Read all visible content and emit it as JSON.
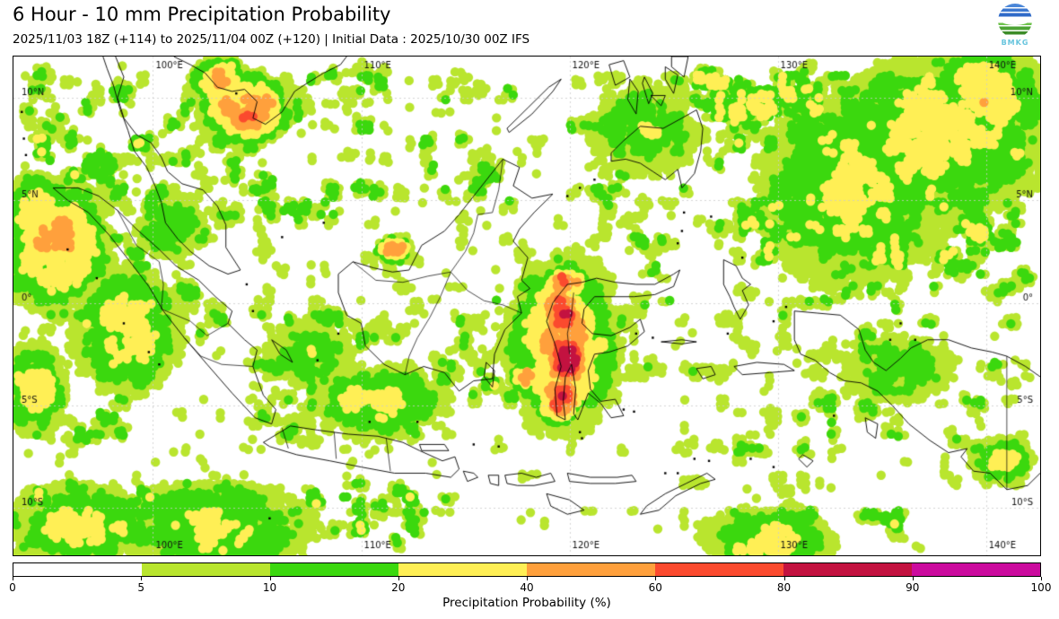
{
  "header": {
    "title": "6 Hour - 10 mm Precipitation Probability",
    "subtitle": "2025/11/03 18Z (+114) to 2025/11/04 00Z (+120) | Initial Data : 2025/10/30 00Z IFS",
    "logo": {
      "text": "BMKG"
    }
  },
  "map": {
    "extent": {
      "lon_min": 93.3,
      "lon_max": 142.6,
      "lat_min": -12.3,
      "lat_max": 12.0
    },
    "grid": {
      "lon_ticks": [
        100,
        110,
        120,
        130,
        140
      ],
      "lon_labels": [
        "100°E",
        "110°E",
        "120°E",
        "130°E",
        "140°E"
      ],
      "lat_ticks": [
        10,
        5,
        0,
        -5,
        -10
      ],
      "lat_labels": [
        "10°N",
        "5°N",
        "0°",
        "5°S",
        "10°S"
      ],
      "line_color": "#cccccc",
      "label_color": "#111111"
    },
    "coast_color": "#000000",
    "coastlines": [
      [
        95.2,
        5.6,
        95.9,
        5.0,
        96.9,
        4.4,
        97.9,
        3.3,
        98.9,
        2.0,
        99.8,
        0.8,
        100.5,
        -0.4,
        101.5,
        -1.7,
        102.6,
        -3.0,
        103.8,
        -4.4,
        104.9,
        -5.6,
        105.7,
        -5.9,
        105.9,
        -5.2,
        105.3,
        -4.5,
        104.8,
        -3.1,
        105.0,
        -2.3,
        104.4,
        -1.8,
        103.6,
        -1.0,
        103.8,
        -0.4,
        103.0,
        0.3,
        102.2,
        1.1,
        101.1,
        1.8,
        100.3,
        2.6,
        99.2,
        3.6,
        98.3,
        4.5,
        97.4,
        5.2,
        96.4,
        5.6,
        95.2,
        5.6
      ],
      [
        105.3,
        -6.8,
        106.6,
        -6.0,
        107.9,
        -6.2,
        109.4,
        -6.4,
        110.8,
        -6.5,
        112.0,
        -6.8,
        112.8,
        -7.2,
        113.9,
        -7.7,
        114.5,
        -7.5,
        114.7,
        -8.1,
        114.3,
        -8.5,
        113.1,
        -8.3,
        111.6,
        -8.3,
        110.0,
        -8.0,
        108.5,
        -7.7,
        106.9,
        -7.4,
        105.6,
        -7.0,
        105.3,
        -6.8
      ],
      [
        112.8,
        -6.9,
        114.0,
        -6.9,
        114.2,
        -7.2,
        112.9,
        -7.2,
        112.8,
        -6.9
      ],
      [
        108.9,
        0.5,
        108.9,
        1.4,
        109.6,
        2.0,
        110.6,
        1.7,
        111.5,
        1.5,
        112.3,
        1.6,
        112.9,
        2.8,
        114.0,
        3.5,
        114.7,
        4.3,
        115.4,
        5.2,
        116.1,
        6.1,
        116.8,
        7.0,
        117.6,
        6.6,
        117.3,
        5.7,
        118.2,
        5.1,
        119.2,
        5.3,
        118.3,
        4.4,
        117.6,
        3.6,
        117.3,
        3.0,
        118.0,
        2.2,
        117.7,
        1.1,
        118.1,
        0.7,
        117.5,
        0.3,
        117.7,
        -0.5,
        116.9,
        -1.3,
        116.4,
        -2.5,
        116.3,
        -3.7,
        115.4,
        -3.8,
        114.7,
        -4.3,
        114.0,
        -3.4,
        113.0,
        -3.1,
        112.1,
        -3.5,
        111.1,
        -3.0,
        110.2,
        -2.1,
        110.0,
        -1.0,
        109.3,
        -0.6,
        108.9,
        0.5
      ],
      [
        119.5,
        0.4,
        119.9,
        0.9,
        120.6,
        1.0,
        121.3,
        1.2,
        122.2,
        1.0,
        123.2,
        0.9,
        124.1,
        0.9,
        125.0,
        1.4,
        125.3,
        1.6,
        125.0,
        0.8,
        124.1,
        0.4,
        123.1,
        0.3,
        122.1,
        0.3,
        121.2,
        0.3,
        120.7,
        -0.3,
        120.6,
        -1.0,
        121.1,
        -1.5,
        122.0,
        -1.6,
        122.9,
        -1.2,
        123.4,
        -0.8,
        123.6,
        -1.4,
        122.8,
        -2.1,
        121.9,
        -2.4,
        121.2,
        -2.5,
        120.9,
        -3.3,
        121.0,
        -4.2,
        121.5,
        -4.8,
        122.2,
        -4.7,
        122.6,
        -5.5,
        122.0,
        -5.6,
        121.5,
        -4.9,
        120.9,
        -4.4,
        120.6,
        -5.2,
        120.4,
        -5.7,
        120.2,
        -5.4,
        120.3,
        -4.2,
        120.1,
        -3.0,
        119.8,
        -3.6,
        119.7,
        -4.8,
        119.8,
        -5.7,
        119.4,
        -5.5,
        119.3,
        -4.2,
        119.6,
        -3.1,
        119.3,
        -2.0,
        118.9,
        -0.9,
        119.2,
        0.0,
        119.5,
        0.4
      ],
      [
        130.8,
        -0.4,
        131.9,
        -0.5,
        133.0,
        -0.6,
        133.9,
        -1.3,
        134.2,
        -2.3,
        134.6,
        -2.9,
        135.2,
        -3.3,
        135.9,
        -2.7,
        136.4,
        -2.2,
        137.2,
        -1.8,
        138.2,
        -1.8,
        139.3,
        -2.2,
        140.3,
        -2.4,
        141.0,
        -2.6,
        141.9,
        -3.1,
        142.6,
        -3.6
      ],
      [
        142.6,
        -8.3,
        142.0,
        -8.9,
        141.0,
        -9.1,
        140.2,
        -8.3,
        139.4,
        -8.2,
        138.8,
        -7.5,
        139.1,
        -7.1,
        138.2,
        -7.3,
        137.3,
        -6.7,
        136.3,
        -5.9,
        135.5,
        -5.0,
        134.8,
        -4.3,
        134.0,
        -3.9,
        133.2,
        -3.8,
        132.5,
        -3.4,
        131.8,
        -2.8,
        131.1,
        -2.5,
        130.8,
        -1.8,
        130.8,
        -0.4
      ],
      [
        127.4,
        2.1,
        128.0,
        1.8,
        128.3,
        1.2,
        128.7,
        0.9,
        128.3,
        0.6,
        128.6,
        -0.1,
        128.2,
        -0.8,
        127.9,
        -0.2,
        127.7,
        0.3,
        127.4,
        0.9,
        127.4,
        2.1
      ],
      [
        127.9,
        -3.1,
        129.0,
        -2.9,
        130.3,
        -3.0,
        130.8,
        -3.3,
        129.6,
        -3.4,
        128.3,
        -3.5,
        127.9,
        -3.1
      ],
      [
        126.1,
        -3.2,
        126.8,
        -3.1,
        127.0,
        -3.5,
        126.4,
        -3.7,
        126.1,
        -3.2
      ],
      [
        124.4,
        -1.9,
        125.4,
        -1.8,
        126.1,
        -1.9,
        125.4,
        -2.0,
        124.4,
        -1.9
      ],
      [
        114.9,
        -8.2,
        115.4,
        -8.3,
        115.6,
        -8.5,
        115.1,
        -8.7,
        114.9,
        -8.2
      ],
      [
        116.1,
        -8.4,
        116.6,
        -8.4,
        116.6,
        -8.9,
        116.2,
        -8.8,
        116.1,
        -8.4
      ],
      [
        116.9,
        -8.4,
        117.7,
        -8.3,
        118.4,
        -8.5,
        119.1,
        -8.3,
        119.3,
        -8.7,
        118.3,
        -8.9,
        117.5,
        -8.9,
        117.0,
        -8.8,
        116.9,
        -8.4
      ],
      [
        119.9,
        -8.3,
        121.0,
        -8.5,
        122.3,
        -8.5,
        123.0,
        -8.4,
        123.2,
        -8.7,
        122.2,
        -8.8,
        121.0,
        -8.8,
        120.0,
        -8.7,
        119.9,
        -8.3
      ],
      [
        118.9,
        -9.3,
        120.0,
        -9.6,
        120.7,
        -10.1,
        119.9,
        -10.3,
        119.1,
        -9.9,
        118.9,
        -9.3
      ],
      [
        123.4,
        -10.3,
        124.3,
        -10.1,
        125.1,
        -9.4,
        126.3,
        -8.8,
        127.0,
        -8.6,
        126.6,
        -8.3,
        125.6,
        -8.8,
        124.6,
        -9.3,
        123.7,
        -9.9,
        123.4,
        -10.3
      ],
      [
        122.0,
        7.3,
        122.6,
        7.9,
        123.4,
        8.6,
        124.5,
        8.5,
        125.4,
        9.0,
        126.1,
        9.4,
        126.4,
        8.5,
        126.3,
        7.4,
        126.0,
        6.3,
        125.4,
        5.6,
        125.2,
        6.5,
        124.6,
        6.0,
        124.0,
        6.4,
        123.4,
        6.8,
        122.7,
        7.0,
        122.0,
        6.9,
        122.0,
        7.3
      ],
      [
        117.1,
        8.3,
        118.2,
        9.2,
        119.2,
        10.3,
        119.6,
        10.9,
        119.0,
        10.5,
        118.0,
        9.5,
        117.0,
        8.5,
        117.1,
        8.3
      ],
      [
        121.9,
        11.6,
        122.6,
        11.8,
        122.9,
        11.0,
        122.2,
        10.6,
        121.9,
        11.6
      ],
      [
        122.9,
        10.9,
        123.3,
        10.3,
        123.2,
        9.2,
        122.8,
        9.9,
        122.9,
        10.9
      ],
      [
        123.6,
        11.0,
        124.0,
        10.2,
        123.8,
        9.7,
        123.5,
        10.7,
        123.6,
        11.0
      ],
      [
        123.9,
        10.1,
        124.6,
        10.1,
        124.4,
        9.6,
        123.9,
        10.1
      ],
      [
        124.6,
        11.5,
        125.2,
        11.1,
        125.0,
        10.2,
        124.6,
        10.9,
        124.6,
        11.5
      ],
      [
        124.9,
        12.0,
        125.7,
        12.0,
        125.5,
        11.0,
        124.9,
        11.5,
        124.9,
        12.0
      ],
      [
        98.2,
        12.0,
        98.6,
        11.0,
        98.3,
        10.0,
        98.6,
        9.0,
        99.2,
        8.2,
        99.9,
        7.8,
        100.4,
        7.1,
        100.7,
        6.4,
        101.4,
        5.8,
        102.4,
        5.5,
        103.1,
        4.7,
        103.5,
        3.8,
        103.5,
        2.7,
        104.2,
        1.6,
        103.6,
        1.4,
        102.7,
        1.8,
        101.8,
        2.5,
        101.2,
        3.1,
        100.6,
        3.9,
        100.4,
        4.9,
        100.1,
        5.7,
        99.7,
        6.6,
        99.1,
        7.4,
        98.8,
        8.4,
        98.4,
        9.5,
        98.1,
        10.6,
        97.8,
        11.4,
        97.6,
        12.0
      ],
      [
        101.0,
        12.0,
        101.8,
        11.6,
        102.5,
        11.2,
        103.1,
        10.5,
        103.8,
        10.3,
        104.4,
        10.4,
        105.0,
        9.8,
        104.8,
        9.0,
        105.4,
        8.7,
        106.2,
        9.3,
        106.8,
        10.3,
        107.4,
        10.7,
        108.2,
        11.2,
        109.0,
        11.6,
        109.3,
        12.0
      ],
      [
        105.7,
        -1.8,
        106.4,
        -2.3,
        106.7,
        -2.9,
        106.1,
        -2.5,
        105.7,
        -1.8
      ],
      [
        116.0,
        -2.9,
        116.4,
        -3.3,
        116.3,
        -4.1,
        115.9,
        -3.6,
        116.0,
        -2.9
      ],
      [
        134.2,
        -5.6,
        134.8,
        -5.9,
        134.7,
        -6.6,
        134.3,
        -6.3,
        134.2,
        -5.6
      ],
      [
        131.2,
        -7.4,
        131.7,
        -7.7,
        131.4,
        -8.0,
        131.0,
        -7.6,
        131.2,
        -7.4
      ]
    ],
    "borders": [
      [
        109.6,
        2.0,
        110.7,
        1.1,
        112.0,
        1.0,
        113.2,
        1.3,
        114.3,
        1.5,
        115.0,
        2.5,
        115.4,
        3.4,
        115.6,
        4.3,
        116.3,
        4.4,
        116.6,
        5.5,
        116.8,
        7.0
      ],
      [
        114.3,
        1.5,
        113.8,
        0.3,
        113.3,
        -0.7,
        112.7,
        -1.7,
        112.3,
        -2.6,
        112.1,
        -3.5
      ],
      [
        114.3,
        1.5,
        115.1,
        0.6,
        115.9,
        0.1,
        116.8,
        -0.1,
        117.7,
        -0.5
      ],
      [
        141.0,
        -2.6,
        141.0,
        -9.1
      ],
      [
        98.3,
        4.5,
        99.2,
        2.8,
        100.3,
        2.0,
        100.5,
        0.9,
        100.4,
        -0.3
      ],
      [
        100.4,
        -0.3,
        101.8,
        -0.9,
        102.6,
        -1.6,
        103.6,
        -1.0
      ],
      [
        101.5,
        -1.7,
        102.3,
        -2.6,
        103.3,
        -3.0,
        104.8,
        -3.1
      ],
      [
        106.2,
        -6.1,
        106.5,
        -7.1
      ],
      [
        108.7,
        -6.3,
        108.8,
        -7.6
      ],
      [
        111.2,
        -6.6,
        111.4,
        -8.2
      ],
      [
        120.2,
        0.5,
        120.1,
        -0.5,
        119.9,
        -1.5,
        120.0,
        -2.5
      ]
    ],
    "islets": [
      [
        93.8,
        8.0
      ],
      [
        93.9,
        7.2
      ],
      [
        93.7,
        9.3
      ],
      [
        95.9,
        2.6
      ],
      [
        97.3,
        1.2
      ],
      [
        98.6,
        -1.0
      ],
      [
        99.8,
        -2.4
      ],
      [
        100.3,
        -3.0
      ],
      [
        104.0,
        10.2
      ],
      [
        108.2,
        3.9
      ],
      [
        106.2,
        3.2
      ],
      [
        104.5,
        0.9
      ],
      [
        104.8,
        -0.4
      ],
      [
        107.9,
        -2.8
      ],
      [
        108.9,
        -1.5
      ],
      [
        110.4,
        -5.8
      ],
      [
        112.7,
        -5.8
      ],
      [
        115.4,
        -6.9
      ],
      [
        116.6,
        -7.0
      ],
      [
        105.6,
        -10.5
      ],
      [
        120.5,
        -6.3
      ],
      [
        120.6,
        -6.6
      ],
      [
        122.6,
        -5.2
      ],
      [
        123.1,
        -5.3
      ],
      [
        123.2,
        -1.5
      ],
      [
        124.0,
        -1.7
      ],
      [
        125.2,
        2.9
      ],
      [
        125.4,
        3.5
      ],
      [
        125.5,
        4.4
      ],
      [
        126.8,
        4.2
      ],
      [
        128.3,
        2.2
      ],
      [
        127.6,
        -1.5
      ],
      [
        129.8,
        -0.9
      ],
      [
        130.4,
        -0.2
      ],
      [
        132.7,
        -5.5
      ],
      [
        129.8,
        -8.0
      ],
      [
        128.7,
        -7.6
      ],
      [
        126.7,
        -7.7
      ],
      [
        126.0,
        -7.6
      ],
      [
        124.6,
        -8.3
      ],
      [
        125.2,
        -8.3
      ],
      [
        135.9,
        -1.0
      ],
      [
        136.6,
        -1.8
      ],
      [
        135.4,
        -1.8
      ],
      [
        121.2,
        6.0
      ],
      [
        120.5,
        5.6
      ],
      [
        119.9,
        5.2
      ]
    ],
    "field": {
      "thresholds": [
        5,
        10,
        20,
        40,
        60,
        80,
        90
      ],
      "colors": [
        "#b9e52e",
        "#3bd80e",
        "#ffef55",
        "#ffa03c",
        "#fb4a2e",
        "#c31240",
        "#cb0b9e"
      ],
      "clusters": [
        [
          104.5,
          9.5,
          1.5,
          1.2,
          62
        ],
        [
          103.2,
          10.9,
          1.0,
          0.8,
          44
        ],
        [
          119.8,
          0.9,
          0.9,
          0.7,
          55
        ],
        [
          119.6,
          -0.6,
          0.85,
          1.2,
          80
        ],
        [
          119.9,
          -2.7,
          0.8,
          1.3,
          86
        ],
        [
          119.6,
          -4.6,
          0.8,
          1.0,
          72
        ],
        [
          119.7,
          -2.0,
          2.0,
          3.2,
          42
        ],
        [
          111.6,
          2.6,
          0.6,
          0.5,
          52
        ],
        [
          137.5,
          8.0,
          4.5,
          3.5,
          26
        ],
        [
          139.8,
          10.0,
          2.5,
          2.0,
          30
        ],
        [
          133.5,
          5.5,
          4.0,
          4.0,
          22
        ],
        [
          96.5,
          -10.8,
          3.0,
          1.6,
          26
        ],
        [
          103.0,
          -10.9,
          4.0,
          1.8,
          24
        ],
        [
          110.8,
          -4.8,
          2.6,
          1.4,
          24
        ],
        [
          117.9,
          -3.6,
          0.5,
          0.5,
          46
        ],
        [
          129.5,
          -11.5,
          2.5,
          1.2,
          28
        ],
        [
          94.3,
          -4.3,
          1.2,
          1.8,
          30
        ],
        [
          123.5,
          8.5,
          2.5,
          2.0,
          18
        ],
        [
          95.3,
          2.8,
          2.0,
          2.3,
          42
        ],
        [
          94.3,
          4.2,
          1.5,
          1.5,
          36
        ],
        [
          98.8,
          -1.3,
          2.2,
          2.4,
          28
        ],
        [
          100.8,
          3.7,
          1.5,
          1.5,
          18
        ],
        [
          140.8,
          -7.8,
          1.2,
          1.0,
          24
        ],
        [
          135.8,
          -3.2,
          2.5,
          1.5,
          15
        ],
        [
          107.5,
          -2.5,
          2.0,
          1.5,
          16
        ]
      ],
      "zones": [
        [
          93.3,
          12.0,
          142.6,
          -12.3,
          8
        ],
        [
          124.0,
          12.0,
          142.6,
          5.5,
          31
        ],
        [
          127.5,
          7.0,
          142.6,
          0.5,
          29
        ],
        [
          131.0,
          2.0,
          142.6,
          -2.5,
          16
        ],
        [
          93.3,
          -8.3,
          113.5,
          -12.3,
          27
        ],
        [
          93.3,
          12.0,
          99.5,
          -8.0,
          17
        ],
        [
          98.0,
          12.0,
          112.0,
          3.0,
          18
        ],
        [
          104.0,
          0.5,
          119.5,
          -7.5,
          16
        ],
        [
          112.0,
          12.0,
          118.5,
          4.0,
          14
        ],
        [
          115.0,
          4.0,
          127.0,
          -6.0,
          14
        ],
        [
          127.0,
          3.0,
          135.0,
          -8.5,
          12
        ],
        [
          126.5,
          -9.3,
          137.5,
          -12.3,
          21
        ],
        [
          133.0,
          0.0,
          142.6,
          -8.0,
          14
        ],
        [
          95.0,
          6.0,
          104.5,
          -2.5,
          17
        ],
        [
          119.0,
          10.0,
          126.5,
          4.0,
          16
        ]
      ]
    }
  },
  "colorbar": {
    "label": "Precipitation Probability (%)",
    "ticks": [
      "0",
      "5",
      "10",
      "20",
      "40",
      "60",
      "80",
      "90",
      "100"
    ],
    "segment_colors": [
      "#ffffff",
      "#b9e52e",
      "#3bd80e",
      "#ffef55",
      "#ffa03c",
      "#fb4a2e",
      "#c31240",
      "#cb0b9e"
    ]
  }
}
